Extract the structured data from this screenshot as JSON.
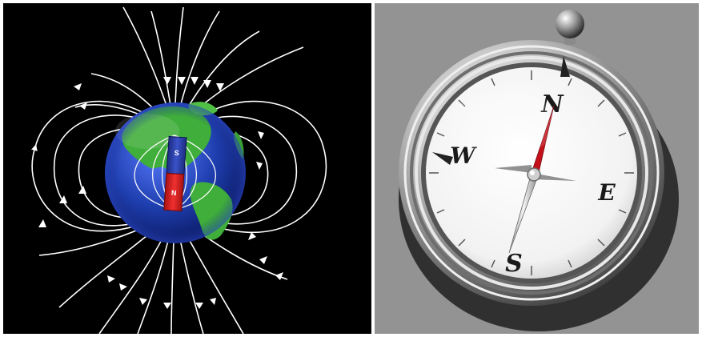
{
  "magnet": {
    "pole_top": "S",
    "pole_bottom": "N"
  },
  "compass": {
    "north": "N",
    "south": "S",
    "east": "E",
    "west": "W"
  },
  "colors": {
    "space_background": "#000000",
    "ocean": "#1f3fb0",
    "land": "#3fae3a",
    "magnet_south": "#2a3fa8",
    "magnet_north": "#e01e1e",
    "field_lines": "#ffffff",
    "right_background": "#939393",
    "compass_needle_north": "#c4101a",
    "compass_bezel": "#d6d6d6"
  }
}
